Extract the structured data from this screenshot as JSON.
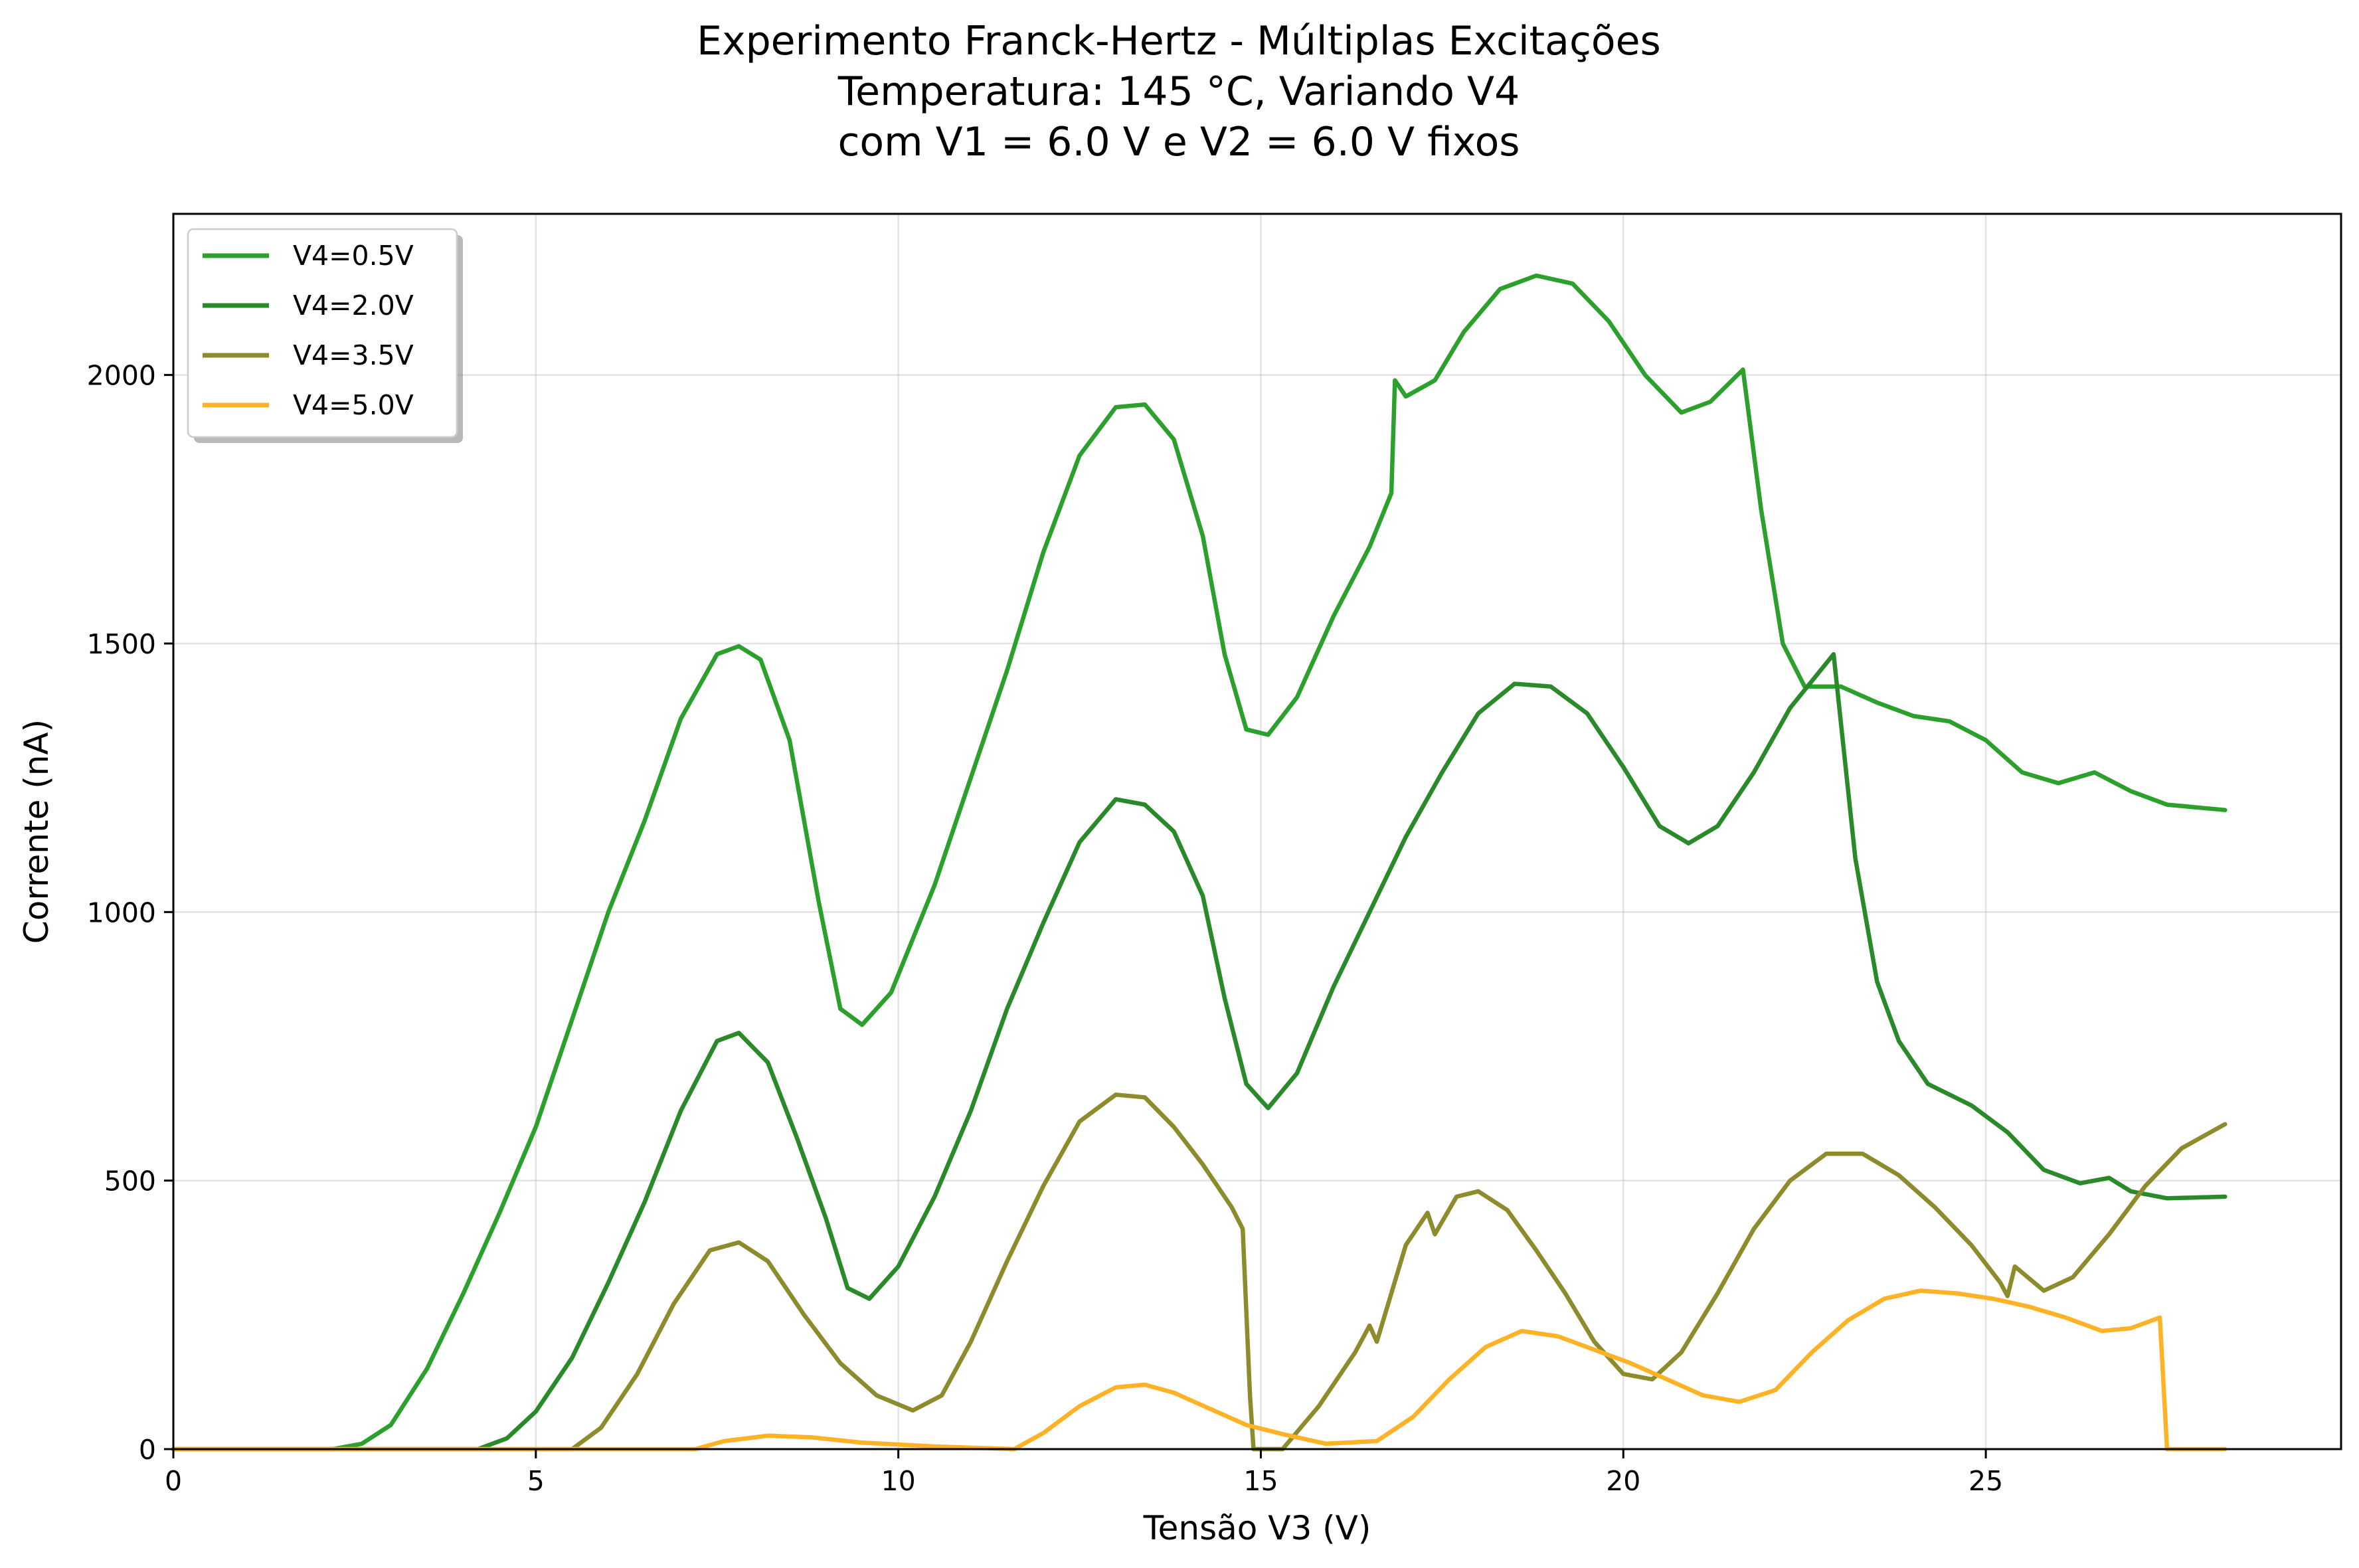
{
  "chart_data": {
    "type": "line",
    "title_lines": [
      "Experimento Franck-Hertz - Múltiplas Excitações",
      "Temperatura: 145 °C, Variando V4",
      "com V1 = 6.0 V e V2 = 6.0 V fixos"
    ],
    "xlabel": "Tensão V3 (V)",
    "ylabel": "Corrente (nA)",
    "xlim": [
      0,
      29.9
    ],
    "ylim": [
      0,
      2300
    ],
    "xticks": [
      0,
      5,
      10,
      15,
      20,
      25
    ],
    "xtick_labels": [
      "0",
      "5",
      "10",
      "15",
      "20",
      "25"
    ],
    "yticks": [
      0,
      500,
      1000,
      1500,
      2000
    ],
    "ytick_labels": [
      "0",
      "500",
      "1000",
      "1500",
      "2000"
    ],
    "grid": true,
    "legend_position": "top-left",
    "series": [
      {
        "name": "V4=0.5V",
        "color": "#2ca02c",
        "points": [
          [
            0,
            0
          ],
          [
            2.2,
            0
          ],
          [
            2.6,
            10
          ],
          [
            3.0,
            45
          ],
          [
            3.5,
            150
          ],
          [
            4.0,
            290
          ],
          [
            4.5,
            440
          ],
          [
            5.0,
            600
          ],
          [
            5.5,
            800
          ],
          [
            6.0,
            1000
          ],
          [
            6.5,
            1170
          ],
          [
            7.0,
            1360
          ],
          [
            7.5,
            1480
          ],
          [
            7.8,
            1495
          ],
          [
            8.1,
            1470
          ],
          [
            8.5,
            1320
          ],
          [
            8.9,
            1020
          ],
          [
            9.2,
            820
          ],
          [
            9.5,
            790
          ],
          [
            9.9,
            850
          ],
          [
            10.5,
            1050
          ],
          [
            11.0,
            1250
          ],
          [
            11.5,
            1450
          ],
          [
            12.0,
            1670
          ],
          [
            12.5,
            1850
          ],
          [
            13.0,
            1940
          ],
          [
            13.4,
            1945
          ],
          [
            13.8,
            1880
          ],
          [
            14.2,
            1700
          ],
          [
            14.5,
            1480
          ],
          [
            14.8,
            1340
          ],
          [
            15.1,
            1330
          ],
          [
            15.5,
            1400
          ],
          [
            16.0,
            1550
          ],
          [
            16.5,
            1680
          ],
          [
            16.8,
            1780
          ],
          [
            16.85,
            1990
          ],
          [
            17.0,
            1960
          ],
          [
            17.4,
            1990
          ],
          [
            17.8,
            2080
          ],
          [
            18.3,
            2160
          ],
          [
            18.8,
            2185
          ],
          [
            19.3,
            2170
          ],
          [
            19.8,
            2100
          ],
          [
            20.3,
            2000
          ],
          [
            20.8,
            1930
          ],
          [
            21.2,
            1950
          ],
          [
            21.65,
            2010
          ],
          [
            21.9,
            1750
          ],
          [
            22.2,
            1500
          ],
          [
            22.5,
            1420
          ],
          [
            23.0,
            1420
          ],
          [
            23.5,
            1390
          ],
          [
            24.0,
            1365
          ],
          [
            24.5,
            1355
          ],
          [
            25.0,
            1320
          ],
          [
            25.5,
            1260
          ],
          [
            26.0,
            1240
          ],
          [
            26.5,
            1260
          ],
          [
            27.0,
            1225
          ],
          [
            27.5,
            1200
          ],
          [
            28.3,
            1190
          ]
        ]
      },
      {
        "name": "V4=2.0V",
        "color": "#2a8a2a",
        "points": [
          [
            0,
            0
          ],
          [
            4.2,
            0
          ],
          [
            4.6,
            20
          ],
          [
            5.0,
            70
          ],
          [
            5.5,
            170
          ],
          [
            6.0,
            310
          ],
          [
            6.5,
            460
          ],
          [
            7.0,
            630
          ],
          [
            7.5,
            760
          ],
          [
            7.8,
            775
          ],
          [
            8.2,
            720
          ],
          [
            8.6,
            580
          ],
          [
            9.0,
            430
          ],
          [
            9.3,
            300
          ],
          [
            9.6,
            280
          ],
          [
            10.0,
            340
          ],
          [
            10.5,
            470
          ],
          [
            11.0,
            630
          ],
          [
            11.5,
            820
          ],
          [
            12.0,
            980
          ],
          [
            12.5,
            1130
          ],
          [
            13.0,
            1210
          ],
          [
            13.4,
            1200
          ],
          [
            13.8,
            1150
          ],
          [
            14.2,
            1030
          ],
          [
            14.5,
            840
          ],
          [
            14.8,
            680
          ],
          [
            15.1,
            635
          ],
          [
            15.5,
            700
          ],
          [
            16.0,
            860
          ],
          [
            16.5,
            1000
          ],
          [
            17.0,
            1140
          ],
          [
            17.5,
            1260
          ],
          [
            18.0,
            1370
          ],
          [
            18.5,
            1425
          ],
          [
            19.0,
            1420
          ],
          [
            19.5,
            1370
          ],
          [
            20.0,
            1270
          ],
          [
            20.5,
            1160
          ],
          [
            20.9,
            1128
          ],
          [
            21.3,
            1160
          ],
          [
            21.8,
            1260
          ],
          [
            22.3,
            1380
          ],
          [
            22.9,
            1480
          ],
          [
            23.2,
            1100
          ],
          [
            23.5,
            870
          ],
          [
            23.8,
            760
          ],
          [
            24.2,
            680
          ],
          [
            24.8,
            640
          ],
          [
            25.3,
            590
          ],
          [
            25.8,
            520
          ],
          [
            26.3,
            495
          ],
          [
            26.7,
            505
          ],
          [
            27.0,
            480
          ],
          [
            27.5,
            467
          ],
          [
            28.3,
            470
          ]
        ]
      },
      {
        "name": "V4=3.5V",
        "color": "#8c8c2c",
        "points": [
          [
            0,
            0
          ],
          [
            5.5,
            0
          ],
          [
            5.9,
            40
          ],
          [
            6.4,
            140
          ],
          [
            6.9,
            270
          ],
          [
            7.4,
            370
          ],
          [
            7.8,
            385
          ],
          [
            8.2,
            350
          ],
          [
            8.7,
            250
          ],
          [
            9.2,
            160
          ],
          [
            9.7,
            100
          ],
          [
            10.2,
            72
          ],
          [
            10.6,
            100
          ],
          [
            11.0,
            200
          ],
          [
            11.5,
            350
          ],
          [
            12.0,
            490
          ],
          [
            12.5,
            610
          ],
          [
            13.0,
            660
          ],
          [
            13.4,
            655
          ],
          [
            13.8,
            600
          ],
          [
            14.2,
            530
          ],
          [
            14.6,
            450
          ],
          [
            14.75,
            410
          ],
          [
            14.85,
            100
          ],
          [
            14.9,
            0
          ],
          [
            15.3,
            0
          ],
          [
            15.8,
            80
          ],
          [
            16.3,
            180
          ],
          [
            16.5,
            230
          ],
          [
            16.6,
            200
          ],
          [
            17.0,
            380
          ],
          [
            17.3,
            440
          ],
          [
            17.4,
            400
          ],
          [
            17.7,
            470
          ],
          [
            18.0,
            480
          ],
          [
            18.4,
            445
          ],
          [
            18.8,
            370
          ],
          [
            19.2,
            290
          ],
          [
            19.6,
            200
          ],
          [
            20.0,
            140
          ],
          [
            20.4,
            130
          ],
          [
            20.8,
            180
          ],
          [
            21.3,
            290
          ],
          [
            21.8,
            410
          ],
          [
            22.3,
            500
          ],
          [
            22.8,
            550
          ],
          [
            23.3,
            550
          ],
          [
            23.8,
            510
          ],
          [
            24.3,
            450
          ],
          [
            24.8,
            380
          ],
          [
            25.2,
            310
          ],
          [
            25.3,
            285
          ],
          [
            25.4,
            340
          ],
          [
            25.8,
            295
          ],
          [
            26.2,
            320
          ],
          [
            26.7,
            400
          ],
          [
            27.2,
            490
          ],
          [
            27.7,
            560
          ],
          [
            28.3,
            605
          ]
        ]
      },
      {
        "name": "V4=5.0V",
        "color": "#ffb225",
        "points": [
          [
            0,
            0
          ],
          [
            7.2,
            0
          ],
          [
            7.6,
            15
          ],
          [
            8.2,
            25
          ],
          [
            8.8,
            22
          ],
          [
            9.5,
            12
          ],
          [
            10.5,
            5
          ],
          [
            11.6,
            0
          ],
          [
            12.0,
            30
          ],
          [
            12.5,
            80
          ],
          [
            13.0,
            115
          ],
          [
            13.4,
            120
          ],
          [
            13.8,
            105
          ],
          [
            14.3,
            75
          ],
          [
            14.8,
            45
          ],
          [
            15.3,
            28
          ],
          [
            15.9,
            10
          ],
          [
            16.6,
            15
          ],
          [
            17.1,
            60
          ],
          [
            17.6,
            130
          ],
          [
            18.1,
            190
          ],
          [
            18.6,
            220
          ],
          [
            19.1,
            210
          ],
          [
            19.6,
            185
          ],
          [
            20.1,
            160
          ],
          [
            20.6,
            130
          ],
          [
            21.1,
            100
          ],
          [
            21.6,
            88
          ],
          [
            22.1,
            110
          ],
          [
            22.6,
            180
          ],
          [
            23.1,
            240
          ],
          [
            23.6,
            280
          ],
          [
            24.1,
            295
          ],
          [
            24.6,
            290
          ],
          [
            25.1,
            280
          ],
          [
            25.6,
            265
          ],
          [
            26.1,
            245
          ],
          [
            26.6,
            220
          ],
          [
            27.0,
            225
          ],
          [
            27.4,
            245
          ],
          [
            27.5,
            0
          ],
          [
            28.3,
            0
          ]
        ]
      }
    ]
  }
}
